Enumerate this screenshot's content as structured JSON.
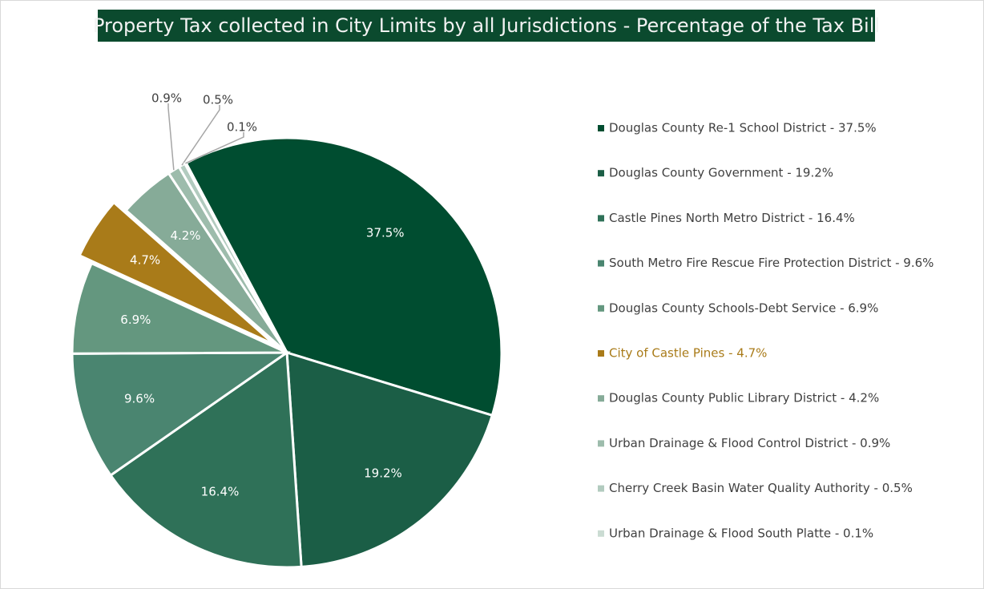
{
  "chart_data": {
    "type": "pie",
    "title": "Property Tax collected in City Limits by all Jurisdictions - Percentage of the Tax Bill",
    "categories": [
      "Douglas County Re-1 School District - 37.5%",
      "Douglas County Government - 19.2%",
      "Castle Pines North Metro District - 16.4%",
      "South Metro Fire Rescue Fire Protection District - 9.6%",
      "Douglas County Schools-Debt Service - 6.9%",
      "City of Castle Pines - 4.7%",
      "Douglas County Public Library District - 4.2%",
      "Urban Drainage & Flood Control District - 0.9%",
      "Cherry Creek Basin Water Quality Authority - 0.5%",
      "Urban Drainage & Flood South Platte - 0.1%"
    ],
    "values": [
      37.5,
      19.2,
      16.4,
      9.6,
      6.9,
      4.7,
      4.2,
      0.9,
      0.5,
      0.1
    ],
    "value_labels": [
      "37.5%",
      "19.2%",
      "16.4%",
      "9.6%",
      "6.9%",
      "4.7%",
      "4.2%",
      "0.9%",
      "0.5%",
      "0.1%"
    ],
    "colors": [
      "#004d30",
      "#1b5e46",
      "#2f7158",
      "#4a8570",
      "#64977f",
      "#a97b19",
      "#86ab98",
      "#9dbcac",
      "#b2cbbf",
      "#cbdcd3"
    ],
    "exploded_index": 5,
    "legend": "right"
  }
}
